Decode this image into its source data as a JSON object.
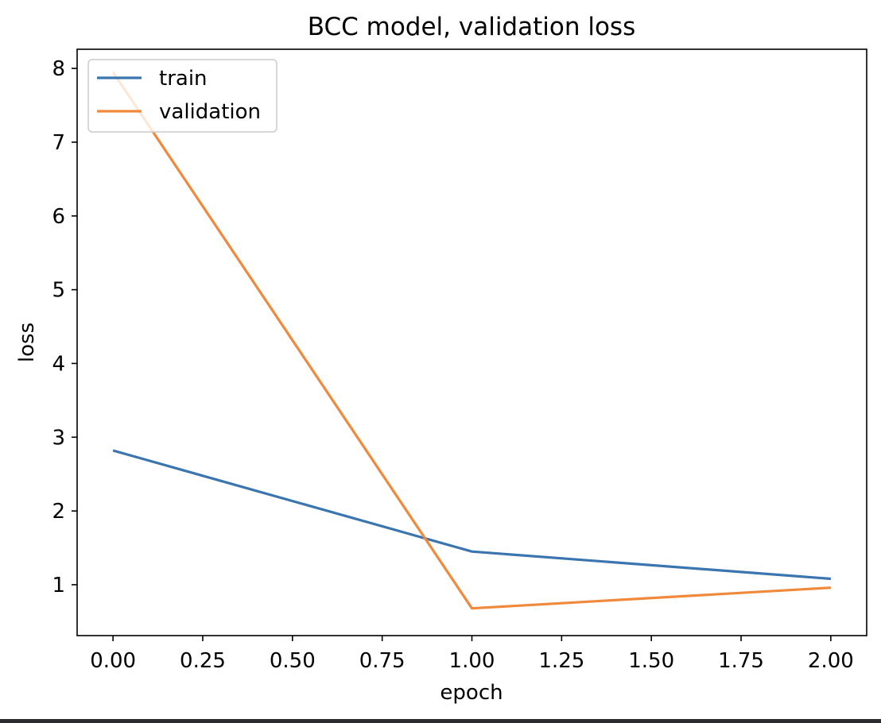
{
  "chart_data": {
    "type": "line",
    "title": "BCC model, validation loss",
    "xlabel": "epoch",
    "ylabel": "loss",
    "x": [
      0,
      1,
      2
    ],
    "xlim": [
      -0.1,
      2.1
    ],
    "ylim": [
      0.31,
      8.26
    ],
    "xticks": [
      0.0,
      0.25,
      0.5,
      0.75,
      1.0,
      1.25,
      1.5,
      1.75,
      2.0
    ],
    "xtick_labels": [
      "0.00",
      "0.25",
      "0.50",
      "0.75",
      "1.00",
      "1.25",
      "1.50",
      "1.75",
      "2.00"
    ],
    "yticks": [
      1,
      2,
      3,
      4,
      5,
      6,
      7,
      8
    ],
    "ytick_labels": [
      "1",
      "2",
      "3",
      "4",
      "5",
      "6",
      "7",
      "8"
    ],
    "series": [
      {
        "name": "train",
        "values": [
          2.82,
          1.45,
          1.08
        ],
        "color": "#3a75b0"
      },
      {
        "name": "validation",
        "values": [
          7.95,
          0.68,
          0.96
        ],
        "color": "#f0893b"
      }
    ],
    "legend_position": "upper-left",
    "grid": false
  }
}
